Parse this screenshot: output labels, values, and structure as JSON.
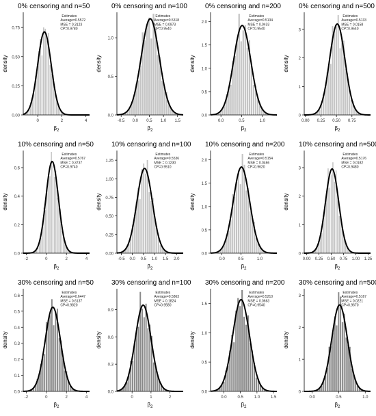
{
  "figure": {
    "ylabel": "density",
    "xlabel_base": "β",
    "xlabel_sub": "2",
    "estimates_label": "Estimates",
    "bar_color_light": "#c4c4c4",
    "bar_color_dark": "#8a8a8a",
    "curve_color": "#000000"
  },
  "chart_data": [
    {
      "type": "bar",
      "title": "0% censoring and n=50",
      "xticks": [
        0,
        2,
        4
      ],
      "xlim": [
        -1.2,
        4.3
      ],
      "yticks": [
        0.0,
        0.25,
        0.5,
        0.75
      ],
      "ylim": [
        0,
        0.88
      ],
      "mean": 0.5572,
      "sd": 0.56,
      "est": {
        "average": "Average=0.5572",
        "mse": "MSE = 0.3123",
        "cp": "CP=0.9780"
      }
    },
    {
      "type": "bar",
      "title": "0% censoring and n=100",
      "xticks": [
        -0.5,
        0.0,
        0.5,
        1.0,
        1.5
      ],
      "xlim": [
        -0.65,
        1.7
      ],
      "yticks": [
        0.0,
        0.5,
        1.0
      ],
      "ylim": [
        0,
        1.33
      ],
      "mean": 0.5318,
      "sd": 0.32,
      "est": {
        "average": "Average=0.5318",
        "mse": "MSE = 0.0973",
        "cp": "CP=0.9540"
      }
    },
    {
      "type": "bar",
      "title": "0% censoring and n=200",
      "xticks": [
        0.0,
        0.5,
        1.0
      ],
      "xlim": [
        -0.25,
        1.35
      ],
      "yticks": [
        0.0,
        0.5,
        1.0,
        1.5,
        2.0
      ],
      "ylim": [
        0,
        2.2
      ],
      "mean": 0.5134,
      "sd": 0.208,
      "est": {
        "average": "Average=0.5134",
        "mse": "MSE = 0.0433",
        "cp": "CP=0.9540"
      }
    },
    {
      "type": "bar",
      "title": "0% censoring and n=500",
      "xticks": [
        0.0,
        0.25,
        0.5,
        0.75
      ],
      "xlim": [
        -0.02,
        1.05
      ],
      "yticks": [
        0,
        1,
        2,
        3
      ],
      "ylim": [
        0,
        3.6
      ],
      "mean": 0.5133,
      "sd": 0.125,
      "est": {
        "average": "Average=0.5133",
        "mse": "MSE = 0.0158",
        "cp": "CP=0.9540"
      }
    },
    {
      "type": "bar",
      "title": "10% censoring and n=50",
      "xticks": [
        -2,
        0,
        2,
        4
      ],
      "xlim": [
        -2.3,
        4.3
      ],
      "yticks": [
        0.0,
        0.2,
        0.4,
        0.6
      ],
      "ylim": [
        0,
        0.72
      ],
      "mean": 0.5767,
      "sd": 0.62,
      "est": {
        "average": "Average=0.5767",
        "mse": "MSE = 0.3737",
        "cp": "CP=0.9740"
      }
    },
    {
      "type": "bar",
      "title": "10% censoring and n=100",
      "xticks": [
        -0.5,
        0.0,
        0.5,
        1.0,
        1.5,
        2.0
      ],
      "xlim": [
        -0.7,
        2.3
      ],
      "yticks": [
        0.0,
        0.25,
        0.5,
        0.75,
        1.0,
        1.25
      ],
      "ylim": [
        0,
        1.38
      ],
      "mean": 0.5536,
      "sd": 0.35,
      "est": {
        "average": "Average=0.5536",
        "mse": "MSE = 0.1230",
        "cp": "CP=0.9510"
      }
    },
    {
      "type": "bar",
      "title": "10% censoring and n=200",
      "xticks": [
        0.0,
        0.5,
        1.0
      ],
      "xlim": [
        -0.3,
        1.45
      ],
      "yticks": [
        0.0,
        0.5,
        1.0,
        1.5,
        2.0
      ],
      "ylim": [
        0,
        2.2
      ],
      "mean": 0.5154,
      "sd": 0.216,
      "est": {
        "average": "Average=0.5154",
        "mse": "MSE = 0.0466",
        "cp": "CP=0.9620"
      }
    },
    {
      "type": "bar",
      "title": "10% censoring and n=500",
      "xticks": [
        0.0,
        0.25,
        0.5,
        0.75,
        1.0,
        1.25
      ],
      "xlim": [
        -0.05,
        1.3
      ],
      "yticks": [
        0,
        1,
        2,
        3
      ],
      "ylim": [
        0,
        3.6
      ],
      "mean": 0.5176,
      "sd": 0.135,
      "est": {
        "average": "Average=0.5176",
        "mse": "MSE = 0.0182",
        "cp": "CP=0.9480"
      }
    },
    {
      "type": "bar",
      "title": "30% censoring and n=50",
      "xticks": [
        -2,
        0,
        2,
        4
      ],
      "xlim": [
        -2.3,
        4.3
      ],
      "yticks": [
        0.0,
        0.1,
        0.2,
        0.3,
        0.4,
        0.5,
        0.6
      ],
      "ylim": [
        0,
        0.64
      ],
      "mean": 0.6447,
      "sd": 0.76,
      "est": {
        "average": "Average=0.6447",
        "mse": "MSE = 0.6137",
        "cp": "CP=0.9820"
      }
    },
    {
      "type": "bar",
      "title": "30% censoring and n=100",
      "xticks": [
        0,
        1,
        2
      ],
      "xlim": [
        -0.8,
        2.7
      ],
      "yticks": [
        0.0,
        0.3,
        0.6,
        0.9
      ],
      "ylim": [
        0,
        1.13
      ],
      "mean": 0.5863,
      "sd": 0.42,
      "est": {
        "average": "Average=0.5863",
        "mse": "MSE = 0.1824",
        "cp": "CP=0.9580"
      }
    },
    {
      "type": "bar",
      "title": "30% censoring and n=200",
      "xticks": [
        0.0,
        0.5,
        1.0,
        1.5
      ],
      "xlim": [
        -0.4,
        1.6
      ],
      "yticks": [
        0.0,
        0.5,
        1.0,
        1.5
      ],
      "ylim": [
        0,
        1.75
      ],
      "mean": 0.521,
      "sd": 0.255,
      "est": {
        "average": "Average=0.5210",
        "mse": "MSE = 0.0663",
        "cp": "CP=0.9540"
      }
    },
    {
      "type": "bar",
      "title": "30% censoring and n=500",
      "xticks": [
        0.0,
        0.5,
        1.0
      ],
      "xlim": [
        -0.15,
        1.1
      ],
      "yticks": [
        0,
        1,
        2,
        3
      ],
      "ylim": [
        0,
        3.2
      ],
      "mean": 0.5167,
      "sd": 0.148,
      "est": {
        "average": "Average=0.5167",
        "mse": "MSE = 0.0221",
        "cp": "CP=0.9670"
      }
    }
  ]
}
